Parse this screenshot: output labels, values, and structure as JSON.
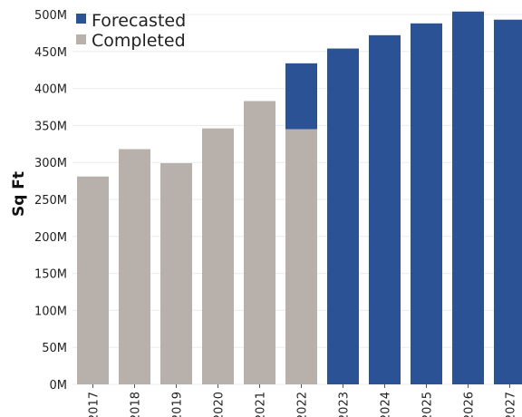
{
  "chart_data": {
    "type": "bar",
    "stacked": true,
    "categories": [
      "2017",
      "2018",
      "2019",
      "2020",
      "2021",
      "2022",
      "2023",
      "2024",
      "2025",
      "2026",
      "2027"
    ],
    "series": [
      {
        "name": "Completed",
        "color": "#b8b0ab",
        "values": [
          281,
          318,
          299,
          346,
          383,
          345,
          0,
          0,
          0,
          0,
          0
        ]
      },
      {
        "name": "Forecasted",
        "color": "#2b5295",
        "values": [
          0,
          0,
          0,
          0,
          0,
          89,
          454,
          472,
          488,
          504,
          493
        ]
      }
    ],
    "units": "millions of square feet",
    "ylabel": "Sq Ft",
    "xlabel": "",
    "title": "",
    "ylim": [
      0,
      500
    ],
    "yticks": [
      0,
      50,
      100,
      150,
      200,
      250,
      300,
      350,
      400,
      450,
      500
    ],
    "ytick_labels": [
      "0M",
      "50M",
      "100M",
      "150M",
      "200M",
      "250M",
      "300M",
      "350M",
      "400M",
      "450M",
      "500M"
    ],
    "grid": true,
    "legend_position": "top-left"
  }
}
